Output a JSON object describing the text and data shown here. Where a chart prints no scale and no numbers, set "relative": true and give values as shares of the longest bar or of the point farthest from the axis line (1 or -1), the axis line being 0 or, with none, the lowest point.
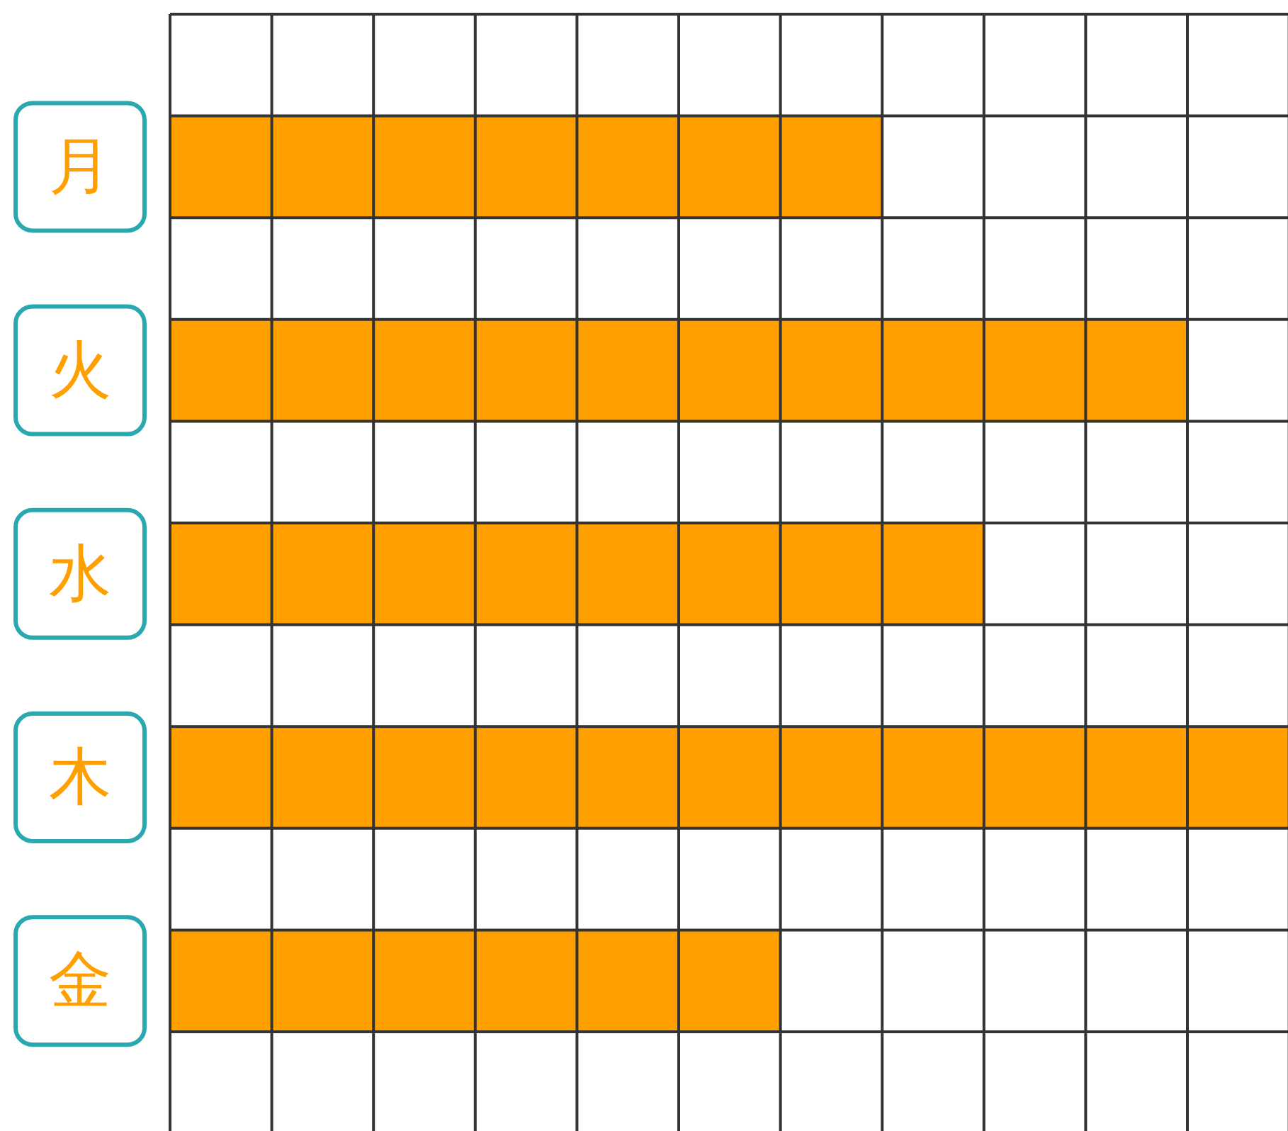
{
  "chart_data": {
    "type": "bar",
    "orientation": "horizontal",
    "relative": true,
    "grid": true,
    "categories": [
      "月",
      "火",
      "水",
      "木",
      "金"
    ],
    "series": [
      {
        "color": "#ff9f00",
        "values": [
          0.636,
          0.909,
          0.727,
          1,
          0.545
        ]
      }
    ]
  }
}
